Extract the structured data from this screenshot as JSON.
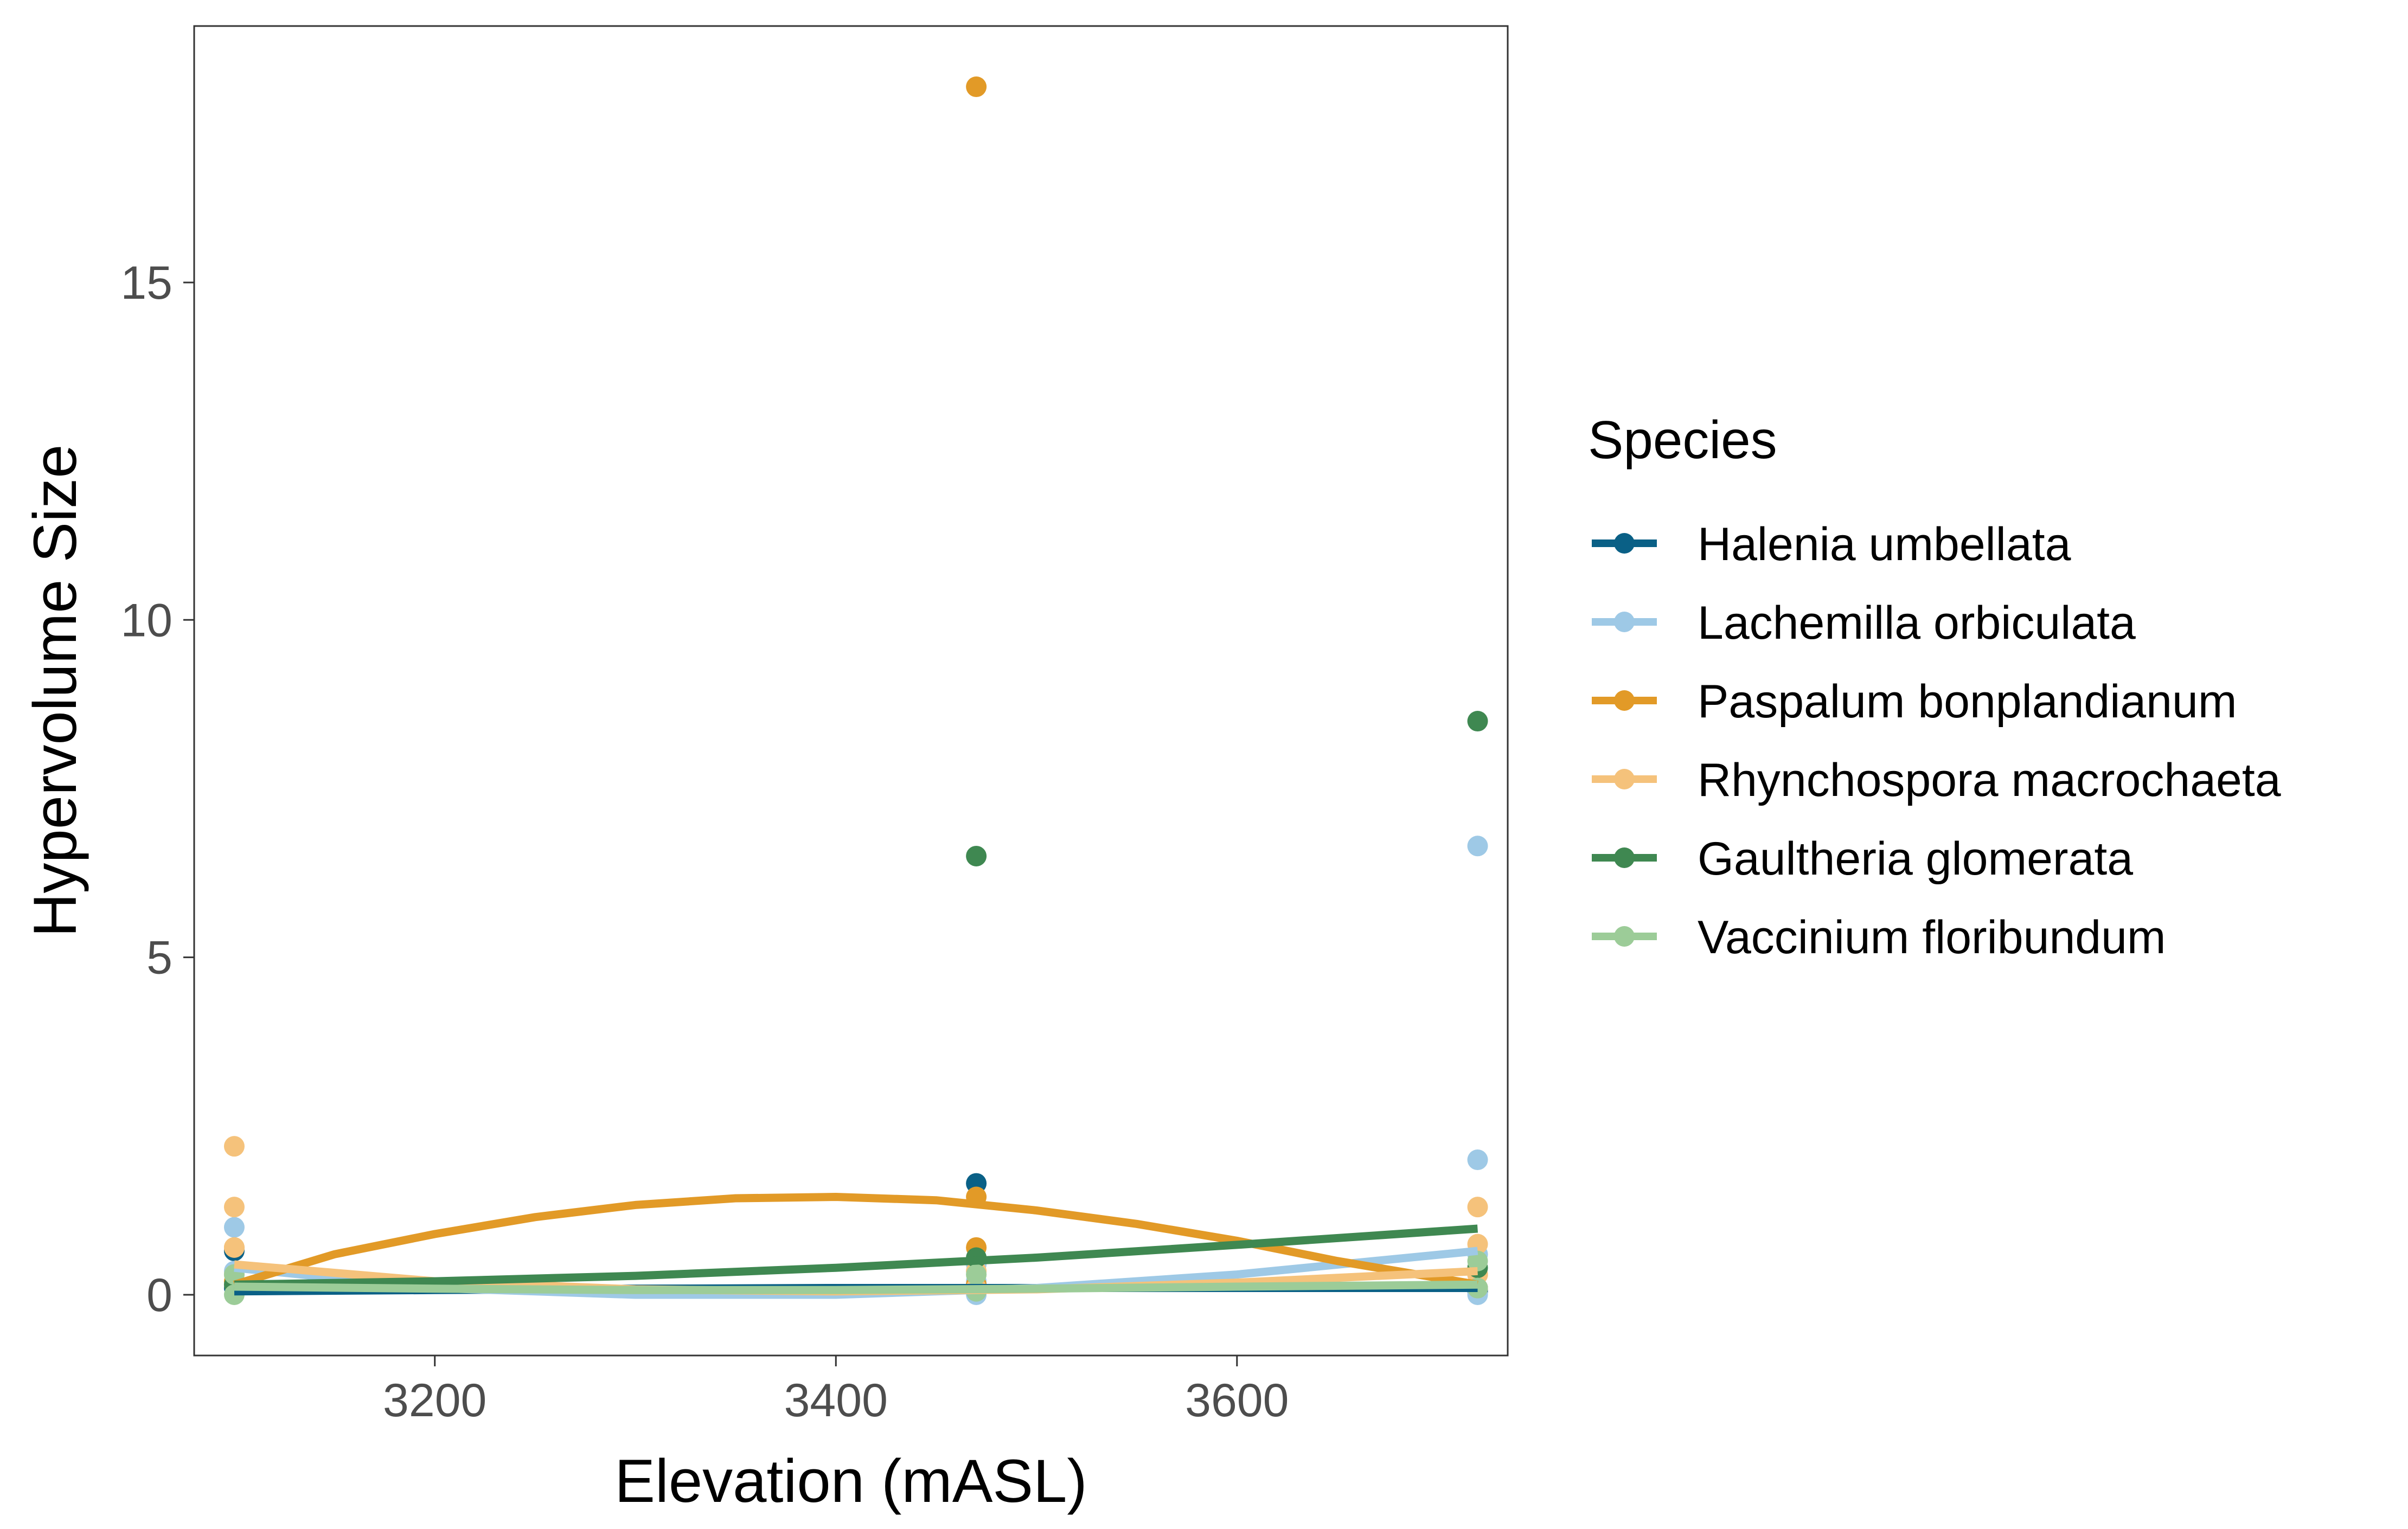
{
  "chart_data": {
    "type": "scatter",
    "title": "",
    "xlabel": "Elevation (mASL)",
    "ylabel": "Hypervolume Size",
    "xlim": [
      3080,
      3735
    ],
    "ylim": [
      -0.9,
      18.8
    ],
    "xticks": [
      3200,
      3400,
      3600
    ],
    "yticks": [
      0,
      5,
      10,
      15
    ],
    "grid": false,
    "legend_title": "Species",
    "legend_position": "right",
    "series": [
      {
        "name": "Halenia umbellata",
        "color": "#0a6086",
        "points": [
          [
            3100,
            0.65
          ],
          [
            3100,
            0.1
          ],
          [
            3470,
            1.65
          ],
          [
            3470,
            0.15
          ],
          [
            3720,
            0.1
          ],
          [
            3720,
            0.05
          ]
        ],
        "fit": [
          [
            3100,
            0.05
          ],
          [
            3200,
            0.07
          ],
          [
            3300,
            0.09
          ],
          [
            3400,
            0.1
          ],
          [
            3500,
            0.1
          ],
          [
            3600,
            0.1
          ],
          [
            3720,
            0.1
          ]
        ]
      },
      {
        "name": "Lachemilla orbiculata",
        "color": "#9ec9e6",
        "points": [
          [
            3100,
            1.0
          ],
          [
            3100,
            0.35
          ],
          [
            3100,
            0.15
          ],
          [
            3470,
            0.45
          ],
          [
            3470,
            0.2
          ],
          [
            3470,
            0.0
          ],
          [
            3720,
            6.65
          ],
          [
            3720,
            2.0
          ],
          [
            3720,
            0.6
          ],
          [
            3720,
            0.0
          ]
        ],
        "fit": [
          [
            3100,
            0.4
          ],
          [
            3200,
            0.1
          ],
          [
            3300,
            0.0
          ],
          [
            3400,
            0.0
          ],
          [
            3500,
            0.1
          ],
          [
            3600,
            0.3
          ],
          [
            3720,
            0.65
          ]
        ]
      },
      {
        "name": "Paspalum bonplandianum",
        "color": "#e29a27",
        "points": [
          [
            3100,
            0.7
          ],
          [
            3100,
            0.2
          ],
          [
            3470,
            17.9
          ],
          [
            3470,
            1.45
          ],
          [
            3470,
            0.7
          ],
          [
            3470,
            0.15
          ],
          [
            3720,
            0.3
          ],
          [
            3720,
            0.1
          ]
        ],
        "fit": [
          [
            3100,
            0.15
          ],
          [
            3150,
            0.6
          ],
          [
            3200,
            0.9
          ],
          [
            3250,
            1.15
          ],
          [
            3300,
            1.33
          ],
          [
            3350,
            1.43
          ],
          [
            3400,
            1.45
          ],
          [
            3450,
            1.4
          ],
          [
            3500,
            1.25
          ],
          [
            3550,
            1.05
          ],
          [
            3600,
            0.8
          ],
          [
            3650,
            0.5
          ],
          [
            3720,
            0.15
          ]
        ]
      },
      {
        "name": "Rhynchospora macrochaeta",
        "color": "#f5c27b",
        "points": [
          [
            3100,
            2.2
          ],
          [
            3100,
            1.3
          ],
          [
            3100,
            0.7
          ],
          [
            3100,
            0.3
          ],
          [
            3470,
            0.35
          ],
          [
            3470,
            0.1
          ],
          [
            3720,
            1.3
          ],
          [
            3720,
            0.75
          ],
          [
            3720,
            0.3
          ]
        ],
        "fit": [
          [
            3100,
            0.45
          ],
          [
            3200,
            0.2
          ],
          [
            3300,
            0.08
          ],
          [
            3400,
            0.05
          ],
          [
            3500,
            0.08
          ],
          [
            3600,
            0.18
          ],
          [
            3720,
            0.35
          ]
        ]
      },
      {
        "name": "Gaultheria glomerata",
        "color": "#3f8851",
        "points": [
          [
            3100,
            0.15
          ],
          [
            3470,
            6.5
          ],
          [
            3470,
            0.55
          ],
          [
            3720,
            8.5
          ],
          [
            3720,
            0.4
          ]
        ],
        "fit": [
          [
            3100,
            0.15
          ],
          [
            3200,
            0.2
          ],
          [
            3300,
            0.28
          ],
          [
            3400,
            0.4
          ],
          [
            3500,
            0.55
          ],
          [
            3600,
            0.74
          ],
          [
            3720,
            0.98
          ]
        ]
      },
      {
        "name": "Vaccinium floribundum",
        "color": "#9ccc98",
        "points": [
          [
            3100,
            0.3
          ],
          [
            3100,
            0.0
          ],
          [
            3470,
            0.3
          ],
          [
            3470,
            0.05
          ],
          [
            3720,
            0.5
          ],
          [
            3720,
            0.1
          ]
        ],
        "fit": [
          [
            3100,
            0.12
          ],
          [
            3200,
            0.09
          ],
          [
            3300,
            0.07
          ],
          [
            3400,
            0.07
          ],
          [
            3500,
            0.09
          ],
          [
            3600,
            0.12
          ],
          [
            3720,
            0.15
          ]
        ]
      }
    ]
  }
}
